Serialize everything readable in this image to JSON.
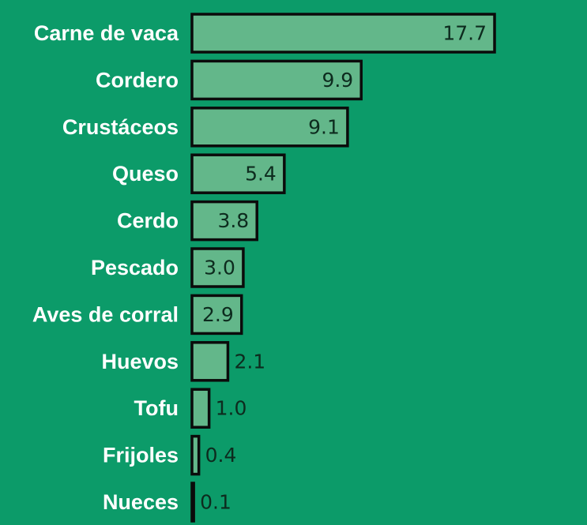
{
  "chart_data": {
    "type": "bar",
    "orientation": "horizontal",
    "categories": [
      "Carne de vaca",
      "Cordero",
      "Crustáceos",
      "Queso",
      "Cerdo",
      "Pescado",
      "Aves de corral",
      "Huevos",
      "Tofu",
      "Frijoles",
      "Nueces"
    ],
    "values": [
      17.7,
      9.9,
      9.1,
      5.4,
      3.8,
      3.0,
      2.9,
      2.1,
      1.0,
      0.4,
      0.1
    ],
    "value_labels": [
      "17.7",
      "9.9",
      "9.1",
      "5.4",
      "3.8",
      "3.0",
      "2.9",
      "2.1",
      "1.0",
      "0.4",
      "0.1"
    ],
    "title": "",
    "xlabel": "",
    "ylabel": "",
    "xlim": [
      0,
      17.7
    ],
    "grid": false,
    "legend": "none",
    "colors": {
      "background": "#0c9b69",
      "bar_fill": "#63b78a",
      "bar_stroke": "#0b0b0b",
      "category_text": "#ffffff",
      "value_text": "#0d2b1e"
    }
  }
}
